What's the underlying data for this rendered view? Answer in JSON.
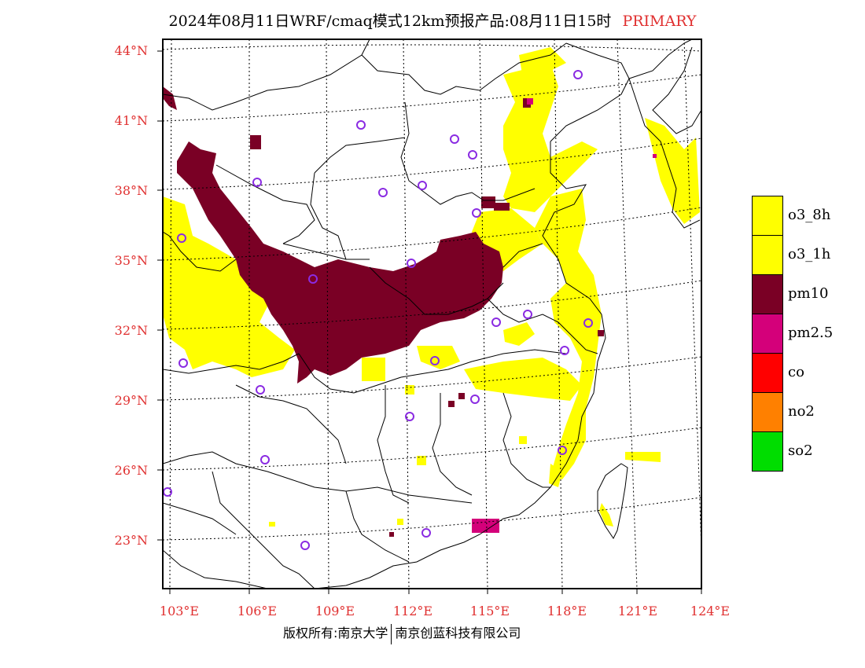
{
  "title": {
    "main": "2024年08月11日WRF/cmaq模式12km预报产品:08月11日15时",
    "tag": "PRIMARY"
  },
  "lat_labels": [
    "44°N",
    "41°N",
    "38°N",
    "35°N",
    "32°N",
    "29°N",
    "26°N",
    "23°N"
  ],
  "lon_labels": [
    "103°E",
    "106°E",
    "109°E",
    "112°E",
    "115°E",
    "118°E",
    "121°E",
    "124°E"
  ],
  "legend": [
    {
      "label": "o3_8h",
      "color": "#ffff00"
    },
    {
      "label": "o3_1h",
      "color": "#ffff00"
    },
    {
      "label": "pm10",
      "color": "#7a0025"
    },
    {
      "label": "pm2.5",
      "color": "#d4007a"
    },
    {
      "label": "co",
      "color": "#ff0000"
    },
    {
      "label": "no2",
      "color": "#ff8000"
    },
    {
      "label": "so2",
      "color": "#00dd00"
    }
  ],
  "footer": {
    "left": "版权所有:南京大学",
    "right": "南京创蓝科技有限公司"
  },
  "colors": {
    "axis_label": "#e03030",
    "station_marker": "#8a2be2",
    "pm10": "#7a0025",
    "o3": "#ffff00",
    "pm25": "#d4007a"
  }
}
